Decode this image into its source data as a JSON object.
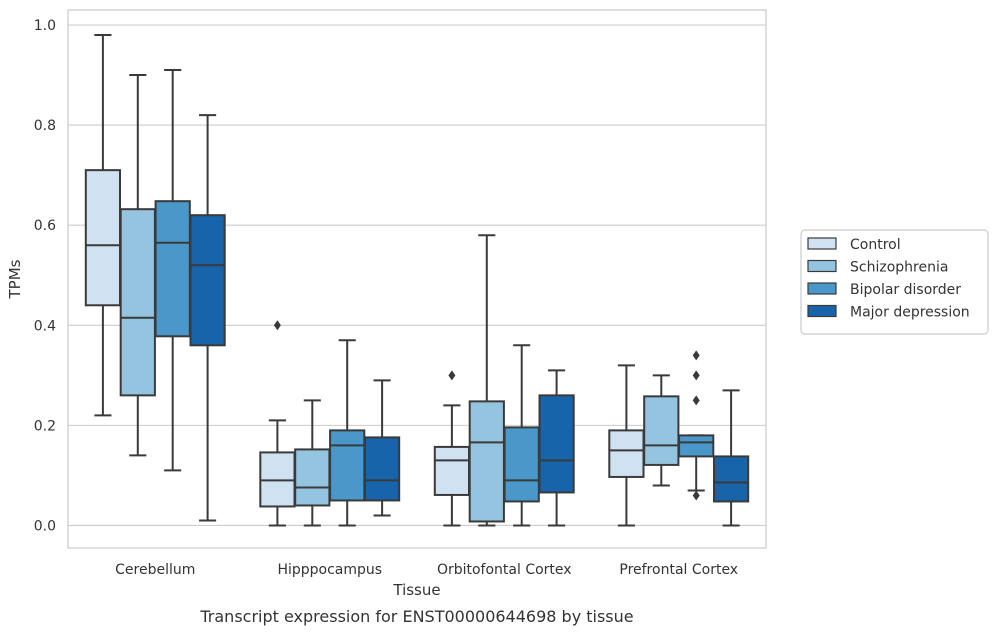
{
  "chart_data": {
    "type": "box",
    "title": "",
    "caption": "Transcript expression for ENST00000644698 by tissue",
    "xlabel": "Tissue",
    "ylabel": "TPMs",
    "ylim": [
      -0.045,
      1.03
    ],
    "yticks": [
      "0.0",
      "0.2",
      "0.4",
      "0.6",
      "0.8",
      "1.0"
    ],
    "grid": "horizontal",
    "legend_position": "right",
    "categories": [
      "Cerebellum",
      "Hipppocampus",
      "Orbitofontal Cortex",
      "Prefrontal Cortex"
    ],
    "series": [
      {
        "name": "Control",
        "color": "#d0e1f2",
        "boxes": [
          {
            "min": 0.22,
            "q1": 0.44,
            "median": 0.56,
            "q3": 0.71,
            "max": 0.98,
            "outliers": []
          },
          {
            "min": 0.0,
            "q1": 0.038,
            "median": 0.09,
            "q3": 0.146,
            "max": 0.21,
            "outliers": [
              0.4
            ]
          },
          {
            "min": 0.0,
            "q1": 0.061,
            "median": 0.13,
            "q3": 0.157,
            "max": 0.24,
            "outliers": [
              0.3
            ]
          },
          {
            "min": 0.0,
            "q1": 0.097,
            "median": 0.15,
            "q3": 0.19,
            "max": 0.32,
            "outliers": []
          }
        ]
      },
      {
        "name": "Schizophrenia",
        "color": "#94c4df",
        "boxes": [
          {
            "min": 0.14,
            "q1": 0.26,
            "median": 0.415,
            "q3": 0.632,
            "max": 0.9,
            "outliers": []
          },
          {
            "min": 0.0,
            "q1": 0.04,
            "median": 0.076,
            "q3": 0.152,
            "max": 0.25,
            "outliers": []
          },
          {
            "min": 0.0,
            "q1": 0.008,
            "median": 0.166,
            "q3": 0.248,
            "max": 0.58,
            "outliers": []
          },
          {
            "min": 0.08,
            "q1": 0.121,
            "median": 0.16,
            "q3": 0.258,
            "max": 0.3,
            "outliers": []
          }
        ]
      },
      {
        "name": "Bipolar disorder",
        "color": "#4a98c9",
        "boxes": [
          {
            "min": 0.11,
            "q1": 0.378,
            "median": 0.565,
            "q3": 0.648,
            "max": 0.91,
            "outliers": []
          },
          {
            "min": 0.0,
            "q1": 0.05,
            "median": 0.16,
            "q3": 0.19,
            "max": 0.37,
            "outliers": []
          },
          {
            "min": 0.0,
            "q1": 0.048,
            "median": 0.09,
            "q3": 0.196,
            "max": 0.36,
            "outliers": []
          },
          {
            "min": 0.07,
            "q1": 0.138,
            "median": 0.166,
            "q3": 0.18,
            "max": 0.18,
            "outliers": [
              0.34,
              0.3,
              0.25,
              0.06
            ]
          }
        ]
      },
      {
        "name": "Major depression",
        "color": "#1764ab",
        "boxes": [
          {
            "min": 0.01,
            "q1": 0.36,
            "median": 0.52,
            "q3": 0.62,
            "max": 0.82,
            "outliers": []
          },
          {
            "min": 0.02,
            "q1": 0.05,
            "median": 0.09,
            "q3": 0.176,
            "max": 0.29,
            "outliers": []
          },
          {
            "min": 0.0,
            "q1": 0.066,
            "median": 0.13,
            "q3": 0.26,
            "max": 0.31,
            "outliers": []
          },
          {
            "min": 0.0,
            "q1": 0.048,
            "median": 0.086,
            "q3": 0.138,
            "max": 0.27,
            "outliers": []
          }
        ]
      }
    ]
  }
}
